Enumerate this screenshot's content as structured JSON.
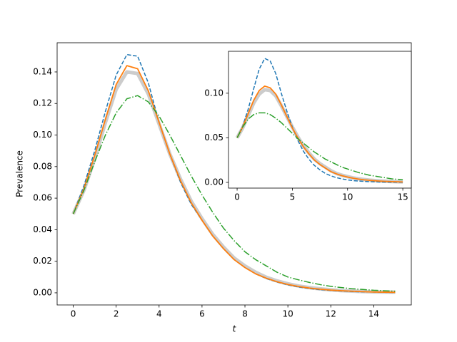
{
  "chart_data": [
    {
      "type": "line",
      "xlabel": "t",
      "ylabel": "Prevalence",
      "x": [
        0,
        0.5,
        1,
        1.5,
        2,
        2.5,
        3,
        3.5,
        4,
        4.5,
        5,
        5.5,
        6,
        6.5,
        7,
        7.5,
        8,
        8.5,
        9,
        9.5,
        10,
        10.5,
        11,
        11.5,
        12,
        12.5,
        13,
        13.5,
        14,
        14.5,
        15
      ],
      "series": [
        {
          "color": "#bbbbbb",
          "linestyle": "solid",
          "linewidth": 5,
          "values": [
            0.05,
            0.065,
            0.085,
            0.108,
            0.129,
            0.14,
            0.139,
            0.126,
            0.107,
            0.088,
            0.072,
            0.058,
            0.047,
            0.037,
            0.029,
            0.022,
            0.017,
            0.013,
            0.0098,
            0.0075,
            0.0057,
            0.0043,
            0.0033,
            0.0025,
            0.0019,
            0.0014,
            0.0011,
            0.0008,
            0.0006,
            0.0005,
            0.0004
          ]
        },
        {
          "color": "#1f77b4",
          "linestyle": "dashed",
          "linewidth": 1.5,
          "values": [
            0.05,
            0.068,
            0.09,
            0.115,
            0.138,
            0.151,
            0.15,
            0.133,
            0.108,
            0.088,
            0.07,
            0.056,
            0.046,
            0.036,
            0.028,
            0.021,
            0.016,
            0.012,
            0.009,
            0.0068,
            0.005,
            0.0037,
            0.0027,
            0.002,
            0.0015,
            0.0011,
            0.0008,
            0.0006,
            0.0005,
            0.0003,
            0.0002
          ]
        },
        {
          "color": "#ff7f0e",
          "linestyle": "solid",
          "linewidth": 1.8,
          "values": [
            0.05,
            0.066,
            0.087,
            0.11,
            0.132,
            0.144,
            0.142,
            0.128,
            0.108,
            0.088,
            0.071,
            0.057,
            0.046,
            0.036,
            0.028,
            0.021,
            0.016,
            0.012,
            0.0092,
            0.007,
            0.0053,
            0.004,
            0.003,
            0.0023,
            0.0017,
            0.0013,
            0.001,
            0.0007,
            0.0005,
            0.0004,
            0.0003
          ]
        },
        {
          "color": "#2ca02c",
          "linestyle": "dashdot",
          "linewidth": 1.5,
          "values": [
            0.05,
            0.065,
            0.083,
            0.1,
            0.114,
            0.123,
            0.125,
            0.121,
            0.112,
            0.1,
            0.087,
            0.074,
            0.062,
            0.051,
            0.041,
            0.033,
            0.026,
            0.021,
            0.017,
            0.013,
            0.01,
            0.0082,
            0.0066,
            0.0052,
            0.0041,
            0.0033,
            0.0026,
            0.0021,
            0.0016,
            0.0013,
            0.001
          ]
        }
      ],
      "xlim": [
        -0.75,
        15.75
      ],
      "ylim": [
        -0.0077,
        0.1585
      ],
      "xticks": [
        0,
        2,
        4,
        6,
        8,
        10,
        12,
        14
      ],
      "yticks": [
        {
          "value": 0,
          "label": "0.00"
        },
        {
          "value": 0.02,
          "label": "0.02"
        },
        {
          "value": 0.04,
          "label": "0.04"
        },
        {
          "value": 0.06,
          "label": "0.06"
        },
        {
          "value": 0.08,
          "label": "0.08"
        },
        {
          "value": 0.1,
          "label": "0.10"
        },
        {
          "value": 0.12,
          "label": "0.12"
        },
        {
          "value": 0.14,
          "label": "0.14"
        }
      ]
    },
    {
      "type": "line",
      "x": [
        0,
        0.5,
        1,
        1.5,
        2,
        2.5,
        3,
        3.5,
        4,
        4.5,
        5,
        5.5,
        6,
        6.5,
        7,
        7.5,
        8,
        8.5,
        9,
        9.5,
        10,
        10.5,
        11,
        11.5,
        12,
        12.5,
        13,
        13.5,
        14,
        14.5,
        15
      ],
      "series": [
        {
          "color": "#bbbbbb",
          "linestyle": "solid",
          "linewidth": 5,
          "values": [
            0.05,
            0.061,
            0.075,
            0.089,
            0.099,
            0.104,
            0.103,
            0.097,
            0.086,
            0.074,
            0.062,
            0.051,
            0.041,
            0.033,
            0.026,
            0.021,
            0.017,
            0.013,
            0.01,
            0.008,
            0.0064,
            0.005,
            0.004,
            0.0032,
            0.0025,
            0.002,
            0.0016,
            0.0013,
            0.001,
            0.0008,
            0.0006
          ]
        },
        {
          "color": "#1f77b4",
          "linestyle": "dashed",
          "linewidth": 1.5,
          "values": [
            0.05,
            0.063,
            0.082,
            0.105,
            0.127,
            0.139,
            0.136,
            0.122,
            0.1,
            0.08,
            0.062,
            0.047,
            0.035,
            0.026,
            0.019,
            0.014,
            0.01,
            0.0073,
            0.0053,
            0.0039,
            0.0028,
            0.002,
            0.0015,
            0.0011,
            0.0008,
            0.0006,
            0.0004,
            0.0003,
            0.0002,
            0.0002,
            0.0001
          ]
        },
        {
          "color": "#ff7f0e",
          "linestyle": "solid",
          "linewidth": 1.8,
          "values": [
            0.05,
            0.062,
            0.077,
            0.092,
            0.103,
            0.108,
            0.106,
            0.099,
            0.087,
            0.074,
            0.061,
            0.05,
            0.04,
            0.032,
            0.025,
            0.02,
            0.016,
            0.012,
            0.0095,
            0.0075,
            0.006,
            0.0047,
            0.0037,
            0.0029,
            0.0023,
            0.0018,
            0.0014,
            0.0011,
            0.0009,
            0.0007,
            0.0005
          ]
        },
        {
          "color": "#2ca02c",
          "linestyle": "dashdot",
          "linewidth": 1.5,
          "values": [
            0.05,
            0.062,
            0.071,
            0.076,
            0.078,
            0.078,
            0.076,
            0.072,
            0.067,
            0.061,
            0.055,
            0.049,
            0.044,
            0.039,
            0.034,
            0.03,
            0.026,
            0.023,
            0.02,
            0.017,
            0.015,
            0.013,
            0.011,
            0.0095,
            0.008,
            0.007,
            0.006,
            0.005,
            0.004,
            0.0035,
            0.003
          ]
        }
      ],
      "xlim": [
        -0.78,
        15.77
      ],
      "ylim": [
        -0.0064,
        0.147
      ],
      "xticks": [
        0,
        5,
        10,
        15
      ],
      "yticks": [
        {
          "value": 0,
          "label": "0.00"
        },
        {
          "value": 0.05,
          "label": "0.05"
        },
        {
          "value": 0.1,
          "label": "0.10"
        }
      ]
    }
  ]
}
